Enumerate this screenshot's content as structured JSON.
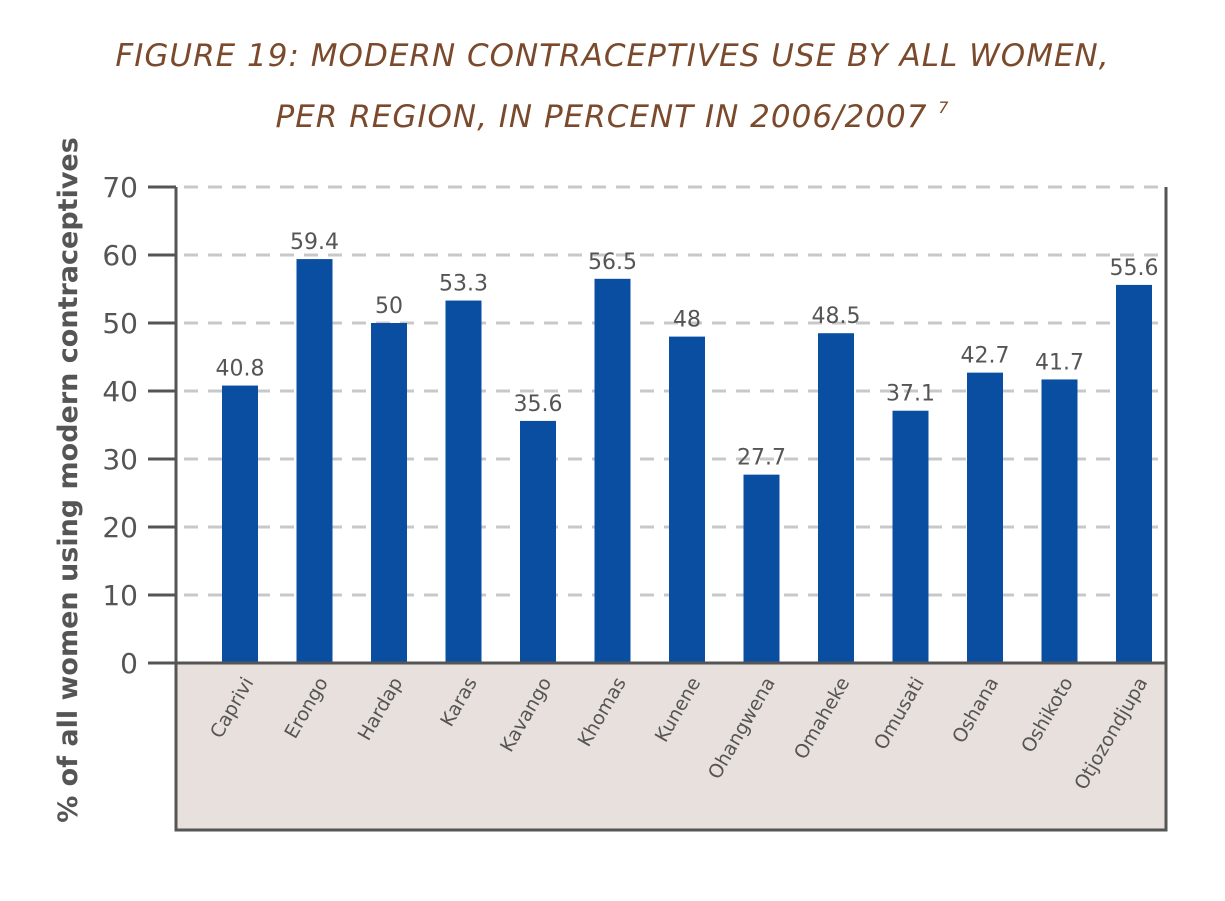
{
  "title": {
    "line1": "FIGURE 19: MODERN CONTRACEPTIVES USE BY ALL WOMEN,",
    "line2": "PER REGION, IN PERCENT IN 2006/2007",
    "footnote": "7"
  },
  "colors": {
    "title": "#7b4a2c",
    "bar": "#0a4ea2",
    "axis": "#555555",
    "grid": "#c8c8c8",
    "category_band": "#e8e0dc"
  },
  "chart_data": {
    "type": "bar",
    "categories": [
      "Caprivi",
      "Erongo",
      "Hardap",
      "Karas",
      "Kavango",
      "Khomas",
      "Kunene",
      "Ohangwena",
      "Omaheke",
      "Omusati",
      "Oshana",
      "Oshikoto",
      "Otjozondjupa"
    ],
    "values": [
      40.8,
      59.4,
      50,
      53.3,
      35.6,
      56.5,
      48,
      27.7,
      48.5,
      37.1,
      42.7,
      41.7,
      55.6
    ],
    "data_labels": [
      "40.8",
      "59.4",
      "50",
      "53.3",
      "35.6",
      "56.5",
      "48",
      "27.7",
      "48.5",
      "37.1",
      "42.7",
      "41.7",
      "55.6"
    ],
    "ylabel": "% of all women using modern contraceptives",
    "ylim": [
      0,
      70
    ],
    "yticks": [
      0,
      10,
      20,
      30,
      40,
      50,
      60,
      70
    ],
    "grid": true,
    "legend": false
  }
}
